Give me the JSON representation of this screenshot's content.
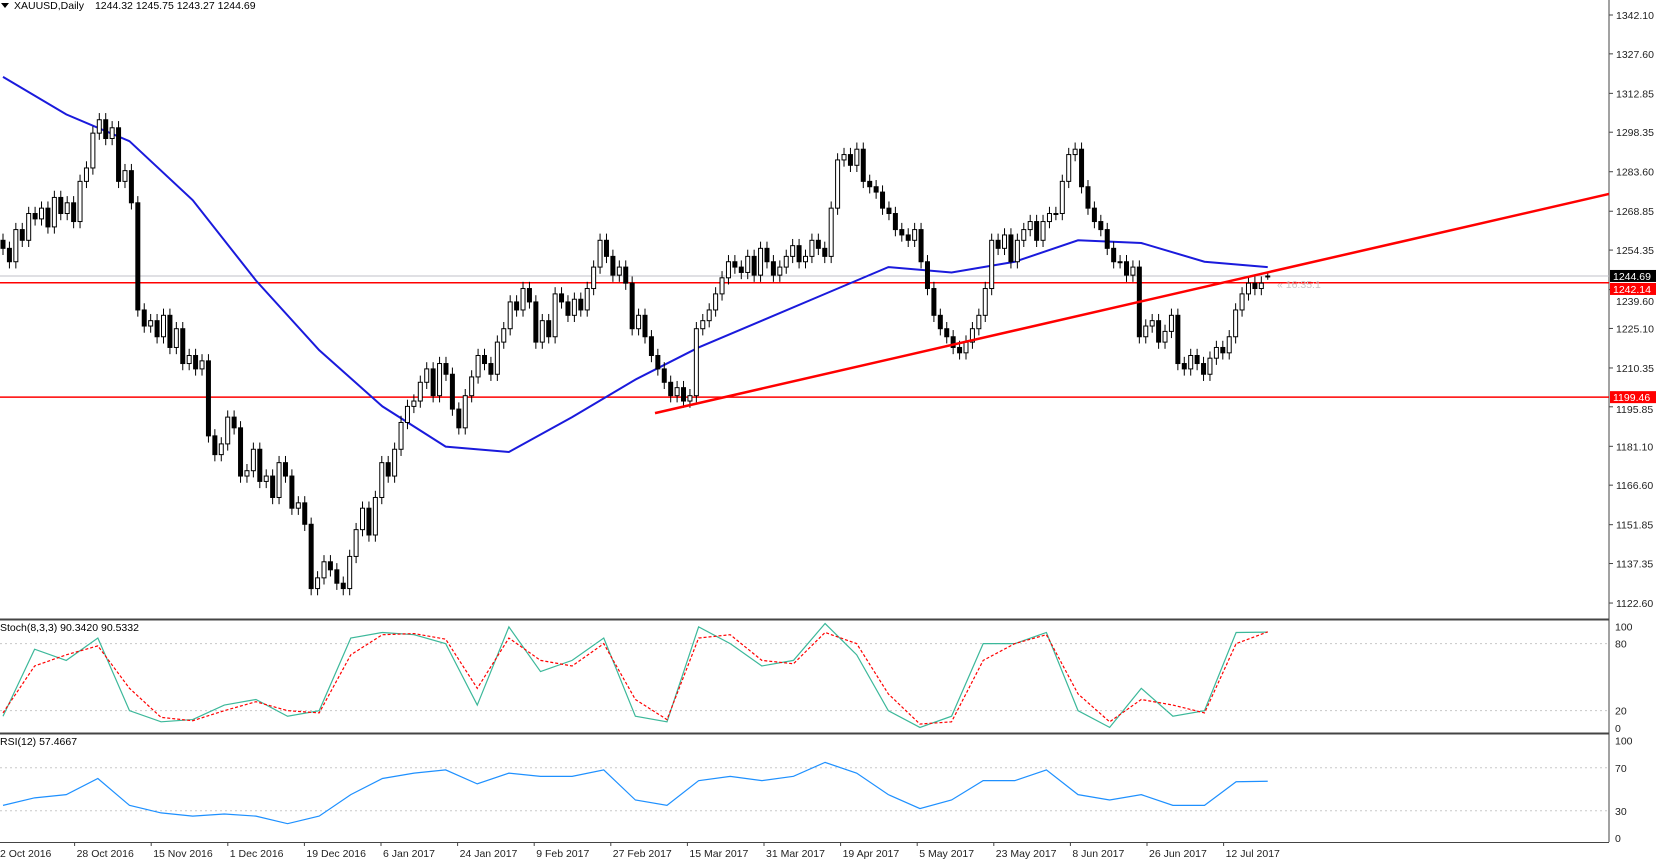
{
  "header": {
    "symbol": "XAUUSD,Daily",
    "open": "1244.32",
    "high": "1245.75",
    "low": "1243.27",
    "close": "1244.69"
  },
  "countdown": "« 16:35:1",
  "colors": {
    "ma": "#1a1adc",
    "levels": "#ff0000",
    "trendline": "#ff0000",
    "stoch_main": "#3cb89a",
    "stoch_signal": "#ff0000",
    "rsi": "#1e90ff",
    "bid_tag_bg": "#000000",
    "level_tag_bg": "#ff0000"
  },
  "chart_data": [
    {
      "type": "candlestick",
      "title": "XAUUSD,Daily",
      "ylim": [
        1113,
        1347
      ],
      "y_ticks": [
        "1342.10",
        "1327.60",
        "1312.85",
        "1298.35",
        "1283.60",
        "1268.85",
        "1254.35",
        "1239.60",
        "1225.10",
        "1210.35",
        "1195.85",
        "1181.10",
        "1166.60",
        "1151.85",
        "1137.35",
        "1122.60"
      ],
      "x_ticks": [
        "2 Oct 2016",
        "28 Oct 2016",
        "15 Nov 2016",
        "1 Dec 2016",
        "19 Dec 2016",
        "6 Jan 2017",
        "24 Jan 2017",
        "9 Feb 2017",
        "27 Feb 2017",
        "15 Mar 2017",
        "31 Mar 2017",
        "19 Apr 2017",
        "5 May 2017",
        "23 May 2017",
        "8 Jun 2017",
        "26 Jun 2017",
        "12 Jul 2017"
      ],
      "last_bar": {
        "open": 1244.32,
        "high": 1245.75,
        "low": 1243.27,
        "close": 1244.69
      },
      "close": [
        1255,
        1250,
        1262,
        1258,
        1268,
        1266,
        1270,
        1263,
        1274,
        1268,
        1272,
        1265,
        1280,
        1285,
        1298,
        1303,
        1296,
        1300,
        1280,
        1284,
        1272,
        1232,
        1226,
        1228,
        1222,
        1230,
        1218,
        1225,
        1212,
        1215,
        1210,
        1213,
        1185,
        1178,
        1182,
        1192,
        1188,
        1170,
        1172,
        1180,
        1168,
        1170,
        1162,
        1175,
        1170,
        1158,
        1160,
        1152,
        1128,
        1132,
        1138,
        1135,
        1130,
        1128,
        1140,
        1150,
        1158,
        1148,
        1162,
        1175,
        1170,
        1180,
        1190,
        1196,
        1198,
        1205,
        1210,
        1200,
        1212,
        1208,
        1195,
        1188,
        1200,
        1207,
        1215,
        1212,
        1208,
        1220,
        1225,
        1235,
        1232,
        1240,
        1235,
        1220,
        1228,
        1222,
        1238,
        1235,
        1230,
        1236,
        1232,
        1240,
        1248,
        1258,
        1252,
        1245,
        1248,
        1242,
        1225,
        1230,
        1222,
        1215,
        1210,
        1205,
        1200,
        1203,
        1198,
        1200,
        1225,
        1228,
        1232,
        1238,
        1244,
        1250,
        1248,
        1246,
        1252,
        1245,
        1255,
        1250,
        1245,
        1248,
        1252,
        1256,
        1250,
        1252,
        1258,
        1255,
        1252,
        1270,
        1288,
        1290,
        1286,
        1292,
        1280,
        1278,
        1276,
        1270,
        1268,
        1262,
        1260,
        1258,
        1262,
        1250,
        1240,
        1230,
        1225,
        1222,
        1218,
        1216,
        1220,
        1225,
        1230,
        1240,
        1258,
        1255,
        1260,
        1250,
        1258,
        1262,
        1265,
        1258,
        1265,
        1268,
        1268,
        1280,
        1290,
        1292,
        1278,
        1270,
        1265,
        1262,
        1255,
        1250,
        1250,
        1245,
        1248,
        1222,
        1226,
        1228,
        1220,
        1224,
        1230,
        1212,
        1210,
        1215,
        1212,
        1208,
        1214,
        1218,
        1216,
        1222,
        1232,
        1238,
        1242,
        1240,
        1242,
        1244.69
      ],
      "moving_average": [
        1319,
        1305,
        1295,
        1273,
        1243,
        1217,
        1196,
        1181,
        1179,
        1192,
        1206,
        1218,
        1228,
        1238,
        1248,
        1246,
        1250,
        1258,
        1257,
        1250,
        1248
      ],
      "horizontal_levels": [
        {
          "value": 1242.14,
          "label": "1242.14"
        },
        {
          "value": 1199.46,
          "label": "1199.46"
        }
      ],
      "bid_line": {
        "value": 1244.69,
        "label": "1244.69"
      },
      "trendline": {
        "from": {
          "date": "2 Mar 2017",
          "price": 1193.5
        },
        "to_price_at_right_edge": 1275.3
      }
    },
    {
      "type": "line",
      "title": "Stoch(8,3,3) 90.3420 90.5332",
      "ylim": [
        0,
        100
      ],
      "y_ticks": [
        "100",
        "80",
        "20",
        "0"
      ],
      "levels": [
        80,
        20
      ],
      "series": [
        {
          "values": [
            15,
            75,
            65,
            85,
            20,
            10,
            12,
            25,
            30,
            15,
            20,
            85,
            90,
            88,
            80,
            25,
            95,
            55,
            65,
            85,
            15,
            10,
            95,
            80,
            60,
            65,
            98,
            70,
            20,
            5,
            15,
            80,
            80,
            90,
            20,
            5,
            40,
            15,
            20,
            90,
            90.342
          ]
        },
        {
          "values": [
            18,
            60,
            70,
            78,
            40,
            14,
            11,
            20,
            28,
            20,
            18,
            70,
            88,
            89,
            84,
            40,
            85,
            65,
            60,
            80,
            30,
            12,
            85,
            88,
            65,
            62,
            90,
            80,
            35,
            8,
            10,
            65,
            80,
            88,
            35,
            10,
            30,
            25,
            18,
            80,
            90.533
          ]
        }
      ]
    },
    {
      "type": "line",
      "title": "RSI(12) 57.4667",
      "ylim": [
        0,
        100
      ],
      "y_ticks": [
        "100",
        "70",
        "30",
        "0"
      ],
      "levels": [
        70,
        30
      ],
      "series": [
        {
          "values": [
            35,
            42,
            45,
            60,
            35,
            28,
            25,
            27,
            25,
            18,
            25,
            45,
            60,
            65,
            68,
            55,
            65,
            62,
            62,
            68,
            40,
            35,
            58,
            62,
            58,
            62,
            75,
            65,
            45,
            32,
            40,
            58,
            58,
            68,
            45,
            40,
            45,
            35,
            35,
            57,
            57.467
          ]
        }
      ]
    }
  ]
}
